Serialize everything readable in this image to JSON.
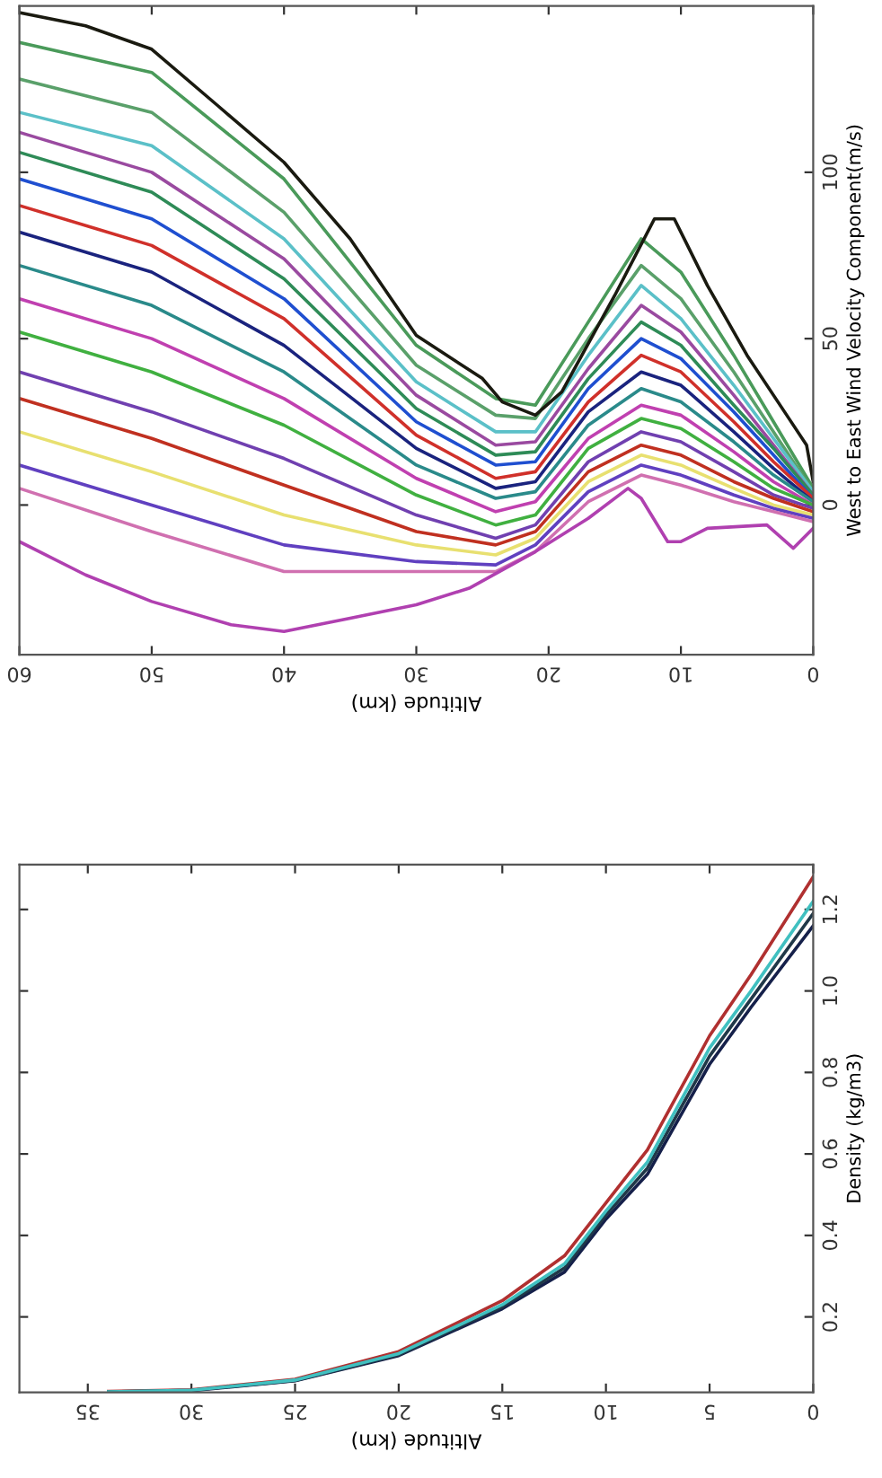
{
  "chart_data": [
    {
      "type": "line",
      "xlabel": "Altitude (km)",
      "ylabel": "West to East Wind Velocity Component(m/s)",
      "xlim": [
        60,
        0
      ],
      "ylim": [
        -45,
        150
      ],
      "xticks": [
        60,
        50,
        40,
        30,
        20,
        10,
        0
      ],
      "yticks": [
        0,
        50,
        100
      ],
      "grid": false,
      "legend": false,
      "series": [
        {
          "color": "#4a9a5a",
          "x": [
            60,
            50,
            40,
            30,
            24,
            21,
            17,
            13,
            10,
            6,
            3,
            0
          ],
          "values": [
            139,
            130,
            98,
            48,
            32,
            30,
            55,
            80,
            70,
            45,
            25,
            5
          ]
        },
        {
          "color": "#5aa06a",
          "x": [
            60,
            50,
            40,
            30,
            24,
            21,
            17,
            13,
            10,
            6,
            3,
            0
          ],
          "values": [
            128,
            118,
            88,
            42,
            27,
            26,
            50,
            72,
            62,
            40,
            22,
            4
          ]
        },
        {
          "color": "#5bc0c8",
          "x": [
            60,
            50,
            40,
            30,
            24,
            21,
            17,
            13,
            10,
            6,
            3,
            0
          ],
          "values": [
            118,
            108,
            80,
            37,
            22,
            22,
            45,
            66,
            56,
            36,
            20,
            4
          ]
        },
        {
          "color": "#9a4aa0",
          "x": [
            60,
            50,
            40,
            30,
            24,
            21,
            17,
            13,
            10,
            6,
            3,
            0
          ],
          "values": [
            112,
            100,
            74,
            33,
            18,
            19,
            41,
            60,
            52,
            33,
            18,
            3
          ]
        },
        {
          "color": "#2e8b57",
          "x": [
            60,
            50,
            40,
            30,
            24,
            21,
            17,
            13,
            10,
            6,
            3,
            0
          ],
          "values": [
            106,
            94,
            68,
            29,
            15,
            16,
            38,
            55,
            48,
            30,
            17,
            3
          ]
        },
        {
          "color": "#1f4fd0",
          "x": [
            60,
            50,
            40,
            30,
            24,
            21,
            17,
            13,
            10,
            6,
            3,
            0
          ],
          "values": [
            98,
            86,
            62,
            25,
            12,
            13,
            35,
            50,
            44,
            28,
            15,
            2
          ]
        },
        {
          "color": "#d0302a",
          "x": [
            60,
            50,
            40,
            30,
            24,
            21,
            17,
            13,
            10,
            6,
            3,
            0
          ],
          "values": [
            90,
            78,
            56,
            21,
            8,
            10,
            31,
            45,
            40,
            25,
            13,
            2
          ]
        },
        {
          "color": "#1a237e",
          "x": [
            60,
            50,
            40,
            30,
            24,
            21,
            17,
            13,
            10,
            6,
            3,
            0
          ],
          "values": [
            82,
            70,
            48,
            17,
            5,
            7,
            28,
            40,
            36,
            22,
            11,
            1
          ]
        },
        {
          "color": "#2a8a8a",
          "x": [
            60,
            50,
            40,
            30,
            24,
            21,
            17,
            13,
            10,
            6,
            3,
            0
          ],
          "values": [
            72,
            60,
            40,
            12,
            2,
            4,
            24,
            35,
            31,
            19,
            9,
            1
          ]
        },
        {
          "color": "#c040b0",
          "x": [
            60,
            50,
            40,
            30,
            24,
            21,
            17,
            13,
            10,
            6,
            3,
            0
          ],
          "values": [
            62,
            50,
            32,
            8,
            -2,
            1,
            20,
            30,
            27,
            16,
            7,
            0
          ]
        },
        {
          "color": "#40b040",
          "x": [
            60,
            50,
            40,
            30,
            24,
            21,
            17,
            13,
            10,
            6,
            3,
            0
          ],
          "values": [
            52,
            40,
            24,
            3,
            -6,
            -3,
            17,
            26,
            23,
            13,
            5,
            0
          ]
        },
        {
          "color": "#7040b0",
          "x": [
            60,
            50,
            40,
            30,
            24,
            21,
            17,
            13,
            10,
            6,
            3,
            0
          ],
          "values": [
            40,
            28,
            14,
            -3,
            -10,
            -6,
            13,
            22,
            19,
            10,
            3,
            -1
          ]
        },
        {
          "color": "#c03020",
          "x": [
            60,
            50,
            40,
            30,
            24,
            21,
            17,
            13,
            10,
            6,
            3,
            0
          ],
          "values": [
            32,
            20,
            6,
            -8,
            -12,
            -8,
            10,
            18,
            15,
            7,
            2,
            -2
          ]
        },
        {
          "color": "#e8e070",
          "x": [
            60,
            50,
            40,
            30,
            24,
            21,
            17,
            13,
            10,
            6,
            3,
            0
          ],
          "values": [
            22,
            10,
            -3,
            -12,
            -15,
            -10,
            7,
            15,
            12,
            5,
            0,
            -3
          ]
        },
        {
          "color": "#6040c0",
          "x": [
            60,
            50,
            40,
            30,
            24,
            21,
            17,
            13,
            10,
            6,
            3,
            0
          ],
          "values": [
            12,
            0,
            -12,
            -17,
            -18,
            -12,
            4,
            12,
            9,
            3,
            -1,
            -4
          ]
        },
        {
          "color": "#d070b0",
          "x": [
            60,
            50,
            40,
            30,
            24,
            21,
            17,
            13,
            10,
            6,
            3,
            0
          ],
          "values": [
            5,
            -8,
            -20,
            -20,
            -20,
            -14,
            1,
            9,
            6,
            1,
            -2,
            -5
          ]
        },
        {
          "color": "#1a1a10",
          "x": [
            60,
            55,
            50,
            45,
            40,
            35,
            30,
            25,
            23.5,
            21,
            19,
            15,
            12,
            10.5,
            8,
            5,
            2,
            0.5,
            0
          ],
          "values": [
            148,
            144,
            137,
            120,
            103,
            80,
            51,
            38,
            31,
            27,
            34,
            63,
            86,
            86,
            66,
            45,
            27,
            18,
            7
          ]
        },
        {
          "color": "#b040b0",
          "x": [
            60,
            55,
            50,
            44,
            40,
            35,
            30,
            26,
            21,
            17,
            14,
            13,
            11,
            10,
            8,
            3.5,
            1.5,
            0
          ],
          "values": [
            -11,
            -21,
            -29,
            -36,
            -38,
            -34,
            -30,
            -25,
            -14,
            -4,
            5,
            2,
            -11,
            -11,
            -7,
            -6,
            -13,
            -7
          ]
        }
      ]
    },
    {
      "type": "line",
      "xlabel": "Altitude (km)",
      "ylabel": "Density (kg/m3)",
      "xlim": [
        38.3,
        0
      ],
      "ylim": [
        0.015,
        1.31
      ],
      "xticks": [
        35,
        30,
        25,
        20,
        15,
        10,
        5,
        0
      ],
      "yticks": [
        {
          "value": 0.2,
          "label": "0.2"
        },
        {
          "value": 0.4,
          "label": "0.4"
        },
        {
          "value": 0.6,
          "label": "0.6"
        },
        {
          "value": 0.8,
          "label": "0.8"
        },
        {
          "value": 1.0,
          "label": "1.0"
        },
        {
          "value": 1.2,
          "label": "1.2"
        }
      ],
      "grid": false,
      "legend": false,
      "series": [
        {
          "color": "#b03030",
          "x": [
            34,
            30,
            25,
            20,
            15,
            12,
            10,
            8,
            5,
            3,
            0
          ],
          "values": [
            0.017,
            0.021,
            0.047,
            0.115,
            0.24,
            0.35,
            0.48,
            0.61,
            0.89,
            1.04,
            1.28
          ]
        },
        {
          "color": "#15204a",
          "x": [
            34,
            30,
            25,
            20,
            15,
            12,
            10,
            8,
            5,
            3,
            0
          ],
          "values": [
            0.015,
            0.019,
            0.043,
            0.105,
            0.22,
            0.31,
            0.44,
            0.55,
            0.82,
            0.96,
            1.16
          ]
        },
        {
          "color": "#203848",
          "x": [
            34,
            30,
            25,
            20,
            15,
            12,
            10,
            8,
            5,
            3,
            0
          ],
          "values": [
            0.016,
            0.02,
            0.044,
            0.107,
            0.225,
            0.32,
            0.45,
            0.565,
            0.84,
            0.98,
            1.19
          ]
        },
        {
          "color": "#40c0c0",
          "x": [
            34,
            30,
            25,
            20,
            15,
            12,
            10,
            8,
            5,
            3,
            0
          ],
          "values": [
            0.016,
            0.02,
            0.045,
            0.11,
            0.23,
            0.33,
            0.46,
            0.58,
            0.86,
            1.0,
            1.22
          ]
        }
      ]
    }
  ]
}
